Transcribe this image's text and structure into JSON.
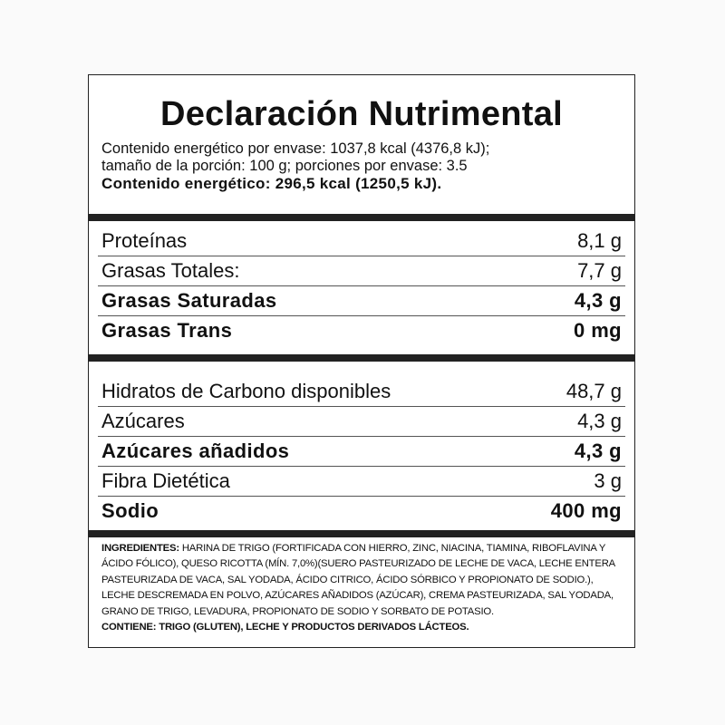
{
  "title": "Declaración Nutrimental",
  "energy": {
    "line1": "Contenido energético por envase: 1037,8 kcal (4376,8 kJ);",
    "line2": "tamaño de la porción: 100 g; porciones por envase: 3.5",
    "line3": "Contenido energético: 296,5 kcal (1250,5 kJ)."
  },
  "section1": [
    {
      "name": "Proteínas",
      "value": "8,1 g",
      "bold": false
    },
    {
      "name": "Grasas Totales:",
      "value": "7,7 g",
      "bold": false
    },
    {
      "name": "Grasas Saturadas",
      "value": "4,3 g",
      "bold": true
    },
    {
      "name": "Grasas Trans",
      "value": "0 mg",
      "bold": true
    }
  ],
  "section2": [
    {
      "name": "Hidratos de Carbono disponibles",
      "value": "48,7 g",
      "bold": false
    },
    {
      "name": "Azúcares",
      "value": "4,3 g",
      "bold": false
    },
    {
      "name": "Azúcares añadidos",
      "value": "4,3 g",
      "bold": true
    },
    {
      "name": "Fibra Dietética",
      "value": "3 g",
      "bold": false
    },
    {
      "name": "Sodio",
      "value": "400 mg",
      "bold": true
    }
  ],
  "ingredients": {
    "label": "INGREDIENTES:",
    "text": " HARINA DE TRIGO (FORTIFICADA CON HIERRO, ZINC, NIACINA, TIAMINA, RIBOFLAVINA Y ÁCIDO FÓLICO), QUESO RICOTTA (MÍN. 7,0%)(SUERO PASTEURIZADO DE LECHE DE VACA, LECHE ENTERA PASTEURIZADA DE VACA, SAL YODADA, ÁCIDO CITRICO, ÁCIDO SÓRBICO Y PROPIONATO DE SODIO.), LECHE DESCREMADA EN POLVO, AZÚCARES AÑADIDOS (AZÚCAR), CREMA PASTEURIZADA, SAL YODADA, GRANO DE TRIGO, LEVADURA, PROPIONATO DE SODIO Y SORBATO DE POTASIO.",
    "contains": "CONTIENE: TRIGO (GLUTEN), LECHE Y PRODUCTOS DERIVADOS LÁCTEOS."
  }
}
